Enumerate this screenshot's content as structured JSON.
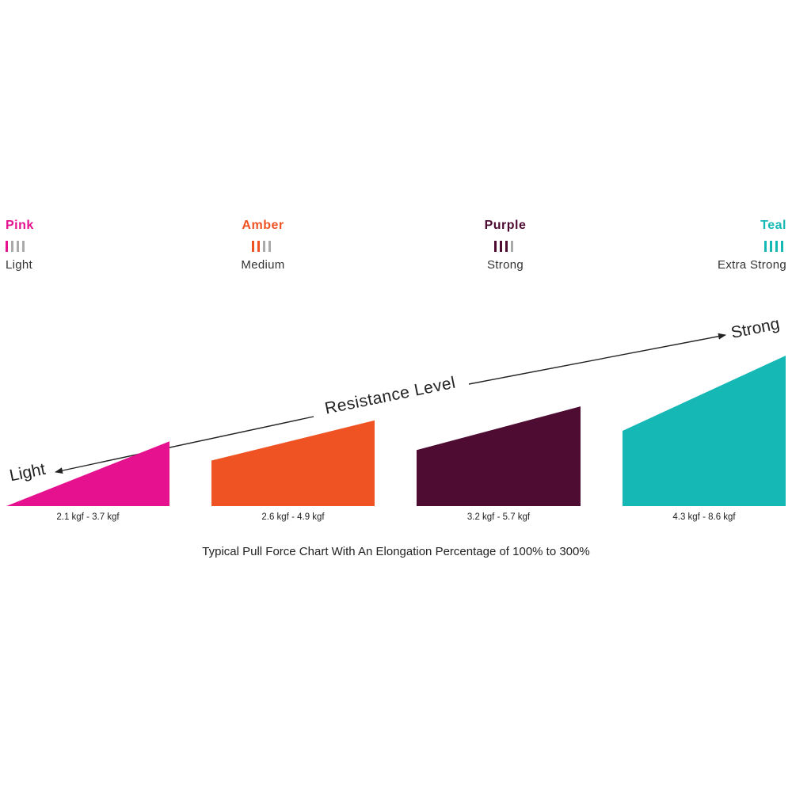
{
  "legend": [
    {
      "name": "Pink",
      "level": "Light",
      "color": "#e5118f",
      "filled": 1
    },
    {
      "name": "Amber",
      "level": "Medium",
      "color": "#ef5324",
      "filled": 2
    },
    {
      "name": "Purple",
      "level": "Strong",
      "color": "#4f0c33",
      "filled": 3
    },
    {
      "name": "Teal",
      "level": "Extra Strong",
      "color": "#16b8b5",
      "filled": 4
    }
  ],
  "inactive_color": "#aaaaaa",
  "arrow": {
    "title": "Resistance Level",
    "left": "Light",
    "right": "Strong"
  },
  "chart_data": {
    "type": "bar",
    "categories": [
      "Pink",
      "Amber",
      "Purple",
      "Teal"
    ],
    "ranges": [
      {
        "label": "2.1 kgf - 3.7 kgf",
        "min": 2.1,
        "max": 3.7
      },
      {
        "label": "2.6 kgf - 4.9 kgf",
        "min": 2.6,
        "max": 4.9
      },
      {
        "label": "3.2 kgf - 5.7 kgf",
        "min": 3.2,
        "max": 5.7
      },
      {
        "label": "4.3 kgf - 8.6 kgf",
        "min": 4.3,
        "max": 8.6
      }
    ],
    "colors": [
      "#e5118f",
      "#ef5324",
      "#4f0c33",
      "#16b8b5"
    ],
    "caption": "Typical Pull Force Chart With An Elongation Percentage of 100% to 300%"
  }
}
